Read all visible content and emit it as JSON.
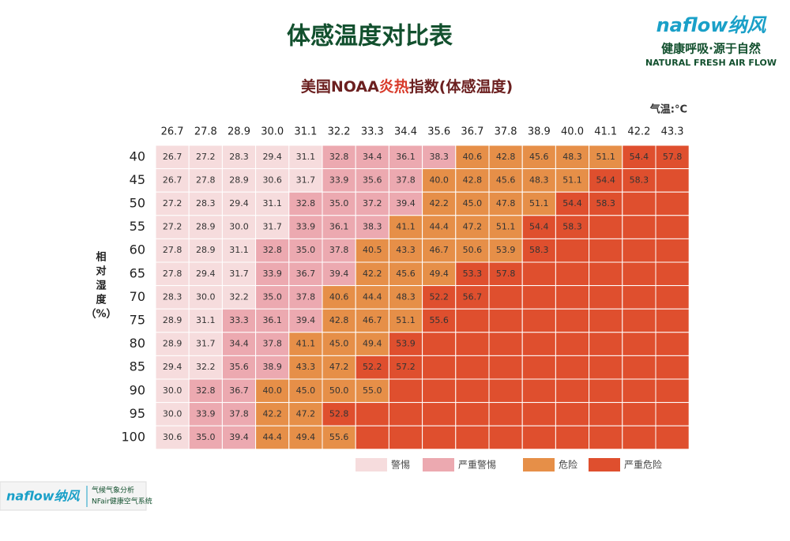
{
  "header": {
    "title": "体感温度对比表",
    "subtitle_parts": [
      "美国NOAA",
      "炎热",
      "指数(体感温度)"
    ],
    "unit": "气温:°C"
  },
  "logo": {
    "brand": "naflow纳风",
    "slogan": "健康呼吸·源于自然",
    "tagline": "NATURAL FRESH AIR FLOW"
  },
  "footer_logo": {
    "brand": "naflow纳风",
    "line1": "气候气象分析",
    "line2": "NFair健康空气系统"
  },
  "y_label": [
    "相",
    "对",
    "湿",
    "度",
    "（%）"
  ],
  "table": {
    "columns": [
      "26.7",
      "27.8",
      "28.9",
      "30.0",
      "31.1",
      "32.2",
      "33.3",
      "34.4",
      "35.6",
      "36.7",
      "37.8",
      "38.9",
      "40.0",
      "41.1",
      "42.2",
      "43.3"
    ],
    "rows": [
      {
        "label": "40",
        "cells": [
          "26.7",
          "27.2",
          "28.3",
          "29.4",
          "31.1",
          "32.8",
          "34.4",
          "36.1",
          "38.3",
          "40.6",
          "42.8",
          "45.6",
          "48.3",
          "51.1",
          "54.4",
          "57.8"
        ]
      },
      {
        "label": "45",
        "cells": [
          "26.7",
          "27.8",
          "28.9",
          "30.6",
          "31.7",
          "33.9",
          "35.6",
          "37.8",
          "40.0",
          "42.8",
          "45.6",
          "48.3",
          "51.1",
          "54.4",
          "58.3"
        ]
      },
      {
        "label": "50",
        "cells": [
          "27.2",
          "28.3",
          "29.4",
          "31.1",
          "32.8",
          "35.0",
          "37.2",
          "39.4",
          "42.2",
          "45.0",
          "47.8",
          "51.1",
          "54.4",
          "58.3"
        ]
      },
      {
        "label": "55",
        "cells": [
          "27.2",
          "28.9",
          "30.0",
          "31.7",
          "33.9",
          "36.1",
          "38.3",
          "41.1",
          "44.4",
          "47.2",
          "51.1",
          "54.4",
          "58.3"
        ]
      },
      {
        "label": "60",
        "cells": [
          "27.8",
          "28.9",
          "31.1",
          "32.8",
          "35.0",
          "37.8",
          "40.5",
          "43.3",
          "46.7",
          "50.6",
          "53.9",
          "58.3"
        ]
      },
      {
        "label": "65",
        "cells": [
          "27.8",
          "29.4",
          "31.7",
          "33.9",
          "36.7",
          "39.4",
          "42.2",
          "45.6",
          "49.4",
          "53.3",
          "57.8"
        ]
      },
      {
        "label": "70",
        "cells": [
          "28.3",
          "30.0",
          "32.2",
          "35.0",
          "37.8",
          "40.6",
          "44.4",
          "48.3",
          "52.2",
          "56.7"
        ]
      },
      {
        "label": "75",
        "cells": [
          "28.9",
          "31.1",
          "33.3",
          "36.1",
          "39.4",
          "42.8",
          "46.7",
          "51.1",
          "55.6"
        ]
      },
      {
        "label": "80",
        "cells": [
          "28.9",
          "31.7",
          "34.4",
          "37.8",
          "41.1",
          "45.0",
          "49.4",
          "53.9"
        ]
      },
      {
        "label": "85",
        "cells": [
          "29.4",
          "32.2",
          "35.6",
          "38.9",
          "43.3",
          "47.2",
          "52.2",
          "57.2"
        ]
      },
      {
        "label": "90",
        "cells": [
          "30.0",
          "32.8",
          "36.7",
          "40.0",
          "45.0",
          "50.0",
          "55.0"
        ]
      },
      {
        "label": "95",
        "cells": [
          "30.0",
          "33.9",
          "37.8",
          "42.2",
          "47.2",
          "52.8"
        ]
      },
      {
        "label": "100",
        "cells": [
          "30.6",
          "35.0",
          "39.4",
          "44.4",
          "49.4",
          "55.6"
        ]
      }
    ],
    "levels": [
      [
        0,
        0,
        0,
        0,
        0,
        1,
        1,
        1,
        1,
        2,
        2,
        2,
        2,
        2,
        3,
        3
      ],
      [
        0,
        0,
        0,
        0,
        0,
        1,
        1,
        1,
        2,
        2,
        2,
        2,
        2,
        3,
        3,
        3
      ],
      [
        0,
        0,
        0,
        0,
        1,
        1,
        1,
        1,
        2,
        2,
        2,
        2,
        3,
        3,
        3,
        3
      ],
      [
        0,
        0,
        0,
        0,
        1,
        1,
        1,
        2,
        2,
        2,
        2,
        3,
        3,
        3,
        3,
        3
      ],
      [
        0,
        0,
        0,
        1,
        1,
        1,
        2,
        2,
        2,
        2,
        2,
        3,
        3,
        3,
        3,
        3
      ],
      [
        0,
        0,
        0,
        1,
        1,
        1,
        2,
        2,
        2,
        3,
        3,
        3,
        3,
        3,
        3,
        3
      ],
      [
        0,
        0,
        0,
        1,
        1,
        2,
        2,
        2,
        3,
        3,
        3,
        3,
        3,
        3,
        3,
        3
      ],
      [
        0,
        0,
        1,
        1,
        1,
        2,
        2,
        2,
        3,
        3,
        3,
        3,
        3,
        3,
        3,
        3
      ],
      [
        0,
        0,
        1,
        1,
        2,
        2,
        2,
        3,
        3,
        3,
        3,
        3,
        3,
        3,
        3,
        3
      ],
      [
        0,
        0,
        1,
        1,
        2,
        2,
        3,
        3,
        3,
        3,
        3,
        3,
        3,
        3,
        3,
        3
      ],
      [
        0,
        1,
        1,
        2,
        2,
        2,
        2,
        3,
        3,
        3,
        3,
        3,
        3,
        3,
        3,
        3
      ],
      [
        0,
        1,
        1,
        2,
        2,
        3,
        3,
        3,
        3,
        3,
        3,
        3,
        3,
        3,
        3,
        3
      ],
      [
        0,
        1,
        1,
        2,
        2,
        2,
        3,
        3,
        3,
        3,
        3,
        3,
        3,
        3,
        3,
        3
      ]
    ]
  },
  "legend": [
    {
      "label": "警惕",
      "color": "#f6dcdd"
    },
    {
      "label": "严重警惕",
      "color": "#eca9b0"
    },
    {
      "label": "危险",
      "color": "#e68f48"
    },
    {
      "label": "严重危险",
      "color": "#df4f2e"
    }
  ]
}
